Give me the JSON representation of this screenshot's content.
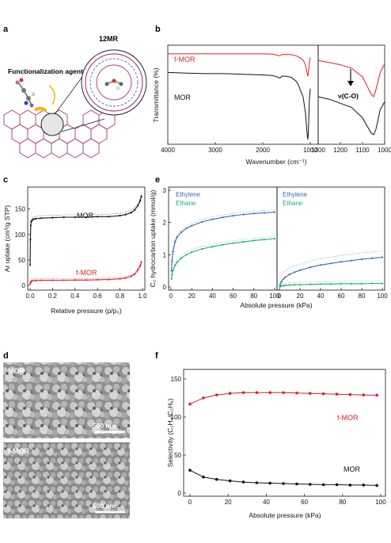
{
  "figure": {
    "panel_labels": [
      "a",
      "b",
      "c",
      "d",
      "e",
      "f"
    ]
  },
  "panel_a": {
    "agent_label": "Functionalization agent",
    "ring_label": "12MR"
  },
  "panel_d": {
    "top_label": "MOR",
    "bottom_label": "f-MOR",
    "scale_label": "500 nm"
  },
  "colors": {
    "mor": "#111111",
    "fmor": "#e41e26",
    "ethylene": "#3b67b5",
    "ethane": "#21b06c",
    "framework": "#b0477e"
  },
  "chart_data": [
    {
      "id": "b",
      "type": "line",
      "ylabel": "Transmittance (%)",
      "xlabel": "Wavenumber (cm⁻¹)",
      "series": [
        {
          "name": "f-MOR",
          "x": [
            4000,
            3600,
            3200,
            2800,
            2400,
            2000,
            1800,
            1700,
            1650,
            1620,
            1600,
            1500,
            1400,
            1300,
            1250,
            1200,
            1150,
            1100,
            1080,
            1060,
            1050,
            1040,
            1020,
            1000
          ],
          "y": [
            93,
            93,
            93,
            93,
            93,
            93,
            92.8,
            92,
            91.5,
            91.8,
            92.5,
            92.6,
            92.4,
            91.5,
            90.5,
            89.5,
            88,
            84,
            80,
            76,
            75,
            78,
            86,
            90
          ]
        },
        {
          "name": "MOR",
          "x": [
            4000,
            3600,
            3200,
            2800,
            2400,
            2000,
            1800,
            1700,
            1650,
            1620,
            1600,
            1500,
            1400,
            1300,
            1250,
            1200,
            1150,
            1100,
            1080,
            1060,
            1050,
            1040,
            1020,
            1000
          ],
          "y": [
            78,
            77.5,
            77,
            77,
            76.5,
            76,
            75.5,
            74.5,
            73.5,
            74,
            75,
            75,
            74,
            71,
            68,
            63,
            58,
            45,
            35,
            26,
            24,
            30,
            55,
            65
          ]
        }
      ],
      "xticks": [
        4000,
        3000,
        2000,
        1000
      ],
      "inset": {
        "xticks": [
          1300,
          1200,
          1100,
          1000
        ],
        "annotation": "ν(C-O)"
      }
    },
    {
      "id": "c",
      "type": "line",
      "ylabel": "Ar uptake (cm³/g STP)",
      "xlabel": "Relative pressure (p/p₀)",
      "yticks": [
        0,
        50,
        100,
        150
      ],
      "xticks": [
        0.0,
        0.2,
        0.4,
        0.6,
        0.8,
        1.0
      ],
      "series": [
        {
          "name": "MOR",
          "x": [
            0.001,
            0.003,
            0.006,
            0.01,
            0.02,
            0.03,
            0.05,
            0.1,
            0.2,
            0.3,
            0.4,
            0.5,
            0.6,
            0.7,
            0.8,
            0.85,
            0.9,
            0.93,
            0.96,
            0.98,
            0.99
          ],
          "y": [
            40,
            90,
            118,
            125,
            128,
            130,
            131,
            132,
            133,
            134,
            134,
            134,
            135,
            135,
            137,
            139,
            143,
            148,
            157,
            166,
            175
          ]
        },
        {
          "name": "f-MOR",
          "x": [
            0.001,
            0.005,
            0.01,
            0.02,
            0.05,
            0.1,
            0.2,
            0.3,
            0.4,
            0.5,
            0.6,
            0.7,
            0.8,
            0.85,
            0.9,
            0.93,
            0.96,
            0.98,
            0.99
          ],
          "y": [
            3,
            6,
            8,
            9,
            9.5,
            10,
            10,
            10.2,
            10.5,
            10.5,
            11,
            11.5,
            13,
            14.5,
            18,
            22,
            30,
            38,
            46
          ]
        }
      ]
    },
    {
      "id": "e",
      "type": "line",
      "ylabel": "C₂ hydrocarbon uptake (mmol/g)",
      "xlabel": "Absolute pressure (kPa)",
      "yticks": [
        0,
        1,
        2,
        3
      ],
      "xticks": [
        0,
        20,
        40,
        60,
        80,
        100
      ],
      "left": {
        "series": [
          {
            "name": "Ethylene",
            "x": [
              0.5,
              1,
              2,
              4,
              6,
              10,
              15,
              20,
              30,
              40,
              50,
              60,
              70,
              80,
              90,
              100
            ],
            "y": [
              0.5,
              0.8,
              1.1,
              1.4,
              1.55,
              1.7,
              1.82,
              1.9,
              2.02,
              2.1,
              2.16,
              2.21,
              2.25,
              2.28,
              2.3,
              2.32
            ]
          },
          {
            "name": "Ethane",
            "x": [
              0.5,
              1,
              2,
              4,
              6,
              10,
              15,
              20,
              30,
              40,
              50,
              60,
              70,
              80,
              90,
              100
            ],
            "y": [
              0.25,
              0.38,
              0.52,
              0.67,
              0.77,
              0.9,
              1.0,
              1.08,
              1.18,
              1.25,
              1.31,
              1.36,
              1.4,
              1.44,
              1.47,
              1.5
            ]
          }
        ]
      },
      "right": {
        "series": [
          {
            "name": "Ethylene",
            "x": [
              0.5,
              1,
              2,
              4,
              6,
              10,
              15,
              20,
              30,
              40,
              50,
              60,
              70,
              80,
              90,
              100
            ],
            "y": [
              0.05,
              0.1,
              0.17,
              0.25,
              0.31,
              0.39,
              0.46,
              0.52,
              0.61,
              0.68,
              0.73,
              0.78,
              0.82,
              0.86,
              0.89,
              0.92
            ]
          },
          {
            "name": "Ethane",
            "x": [
              0.5,
              1,
              2,
              4,
              6,
              10,
              15,
              20,
              30,
              40,
              50,
              60,
              70,
              80,
              90,
              100
            ],
            "y": [
              0.01,
              0.02,
              0.03,
              0.04,
              0.05,
              0.06,
              0.07,
              0.07,
              0.08,
              0.09,
              0.09,
              0.1,
              0.1,
              0.1,
              0.11,
              0.11
            ]
          }
        ]
      }
    },
    {
      "id": "f",
      "type": "line",
      "ylabel": "Selectivity (C₂H₄/C₂H₆)",
      "xlabel": "Absolute pressure (kPa)",
      "yticks": [
        0,
        50,
        100,
        150
      ],
      "xticks": [
        0,
        20,
        40,
        60,
        80,
        100
      ],
      "ylim": [
        0,
        150
      ],
      "series": [
        {
          "name": "f-MOR",
          "x": [
            0,
            7,
            14,
            21,
            28,
            35,
            42,
            49,
            56,
            63,
            70,
            77,
            84,
            91,
            98
          ],
          "y": [
            117,
            125,
            129,
            131,
            132,
            132,
            132,
            132,
            131.5,
            131,
            130.5,
            130,
            129.5,
            129,
            128.5
          ]
        },
        {
          "name": "MOR",
          "x": [
            0,
            7,
            14,
            21,
            28,
            35,
            42,
            49,
            56,
            63,
            70,
            77,
            84,
            91,
            98
          ],
          "y": [
            30,
            21,
            18,
            16,
            14.5,
            13.5,
            13,
            12.5,
            12,
            11.5,
            11,
            11,
            10.5,
            10.5,
            10
          ]
        }
      ]
    }
  ]
}
